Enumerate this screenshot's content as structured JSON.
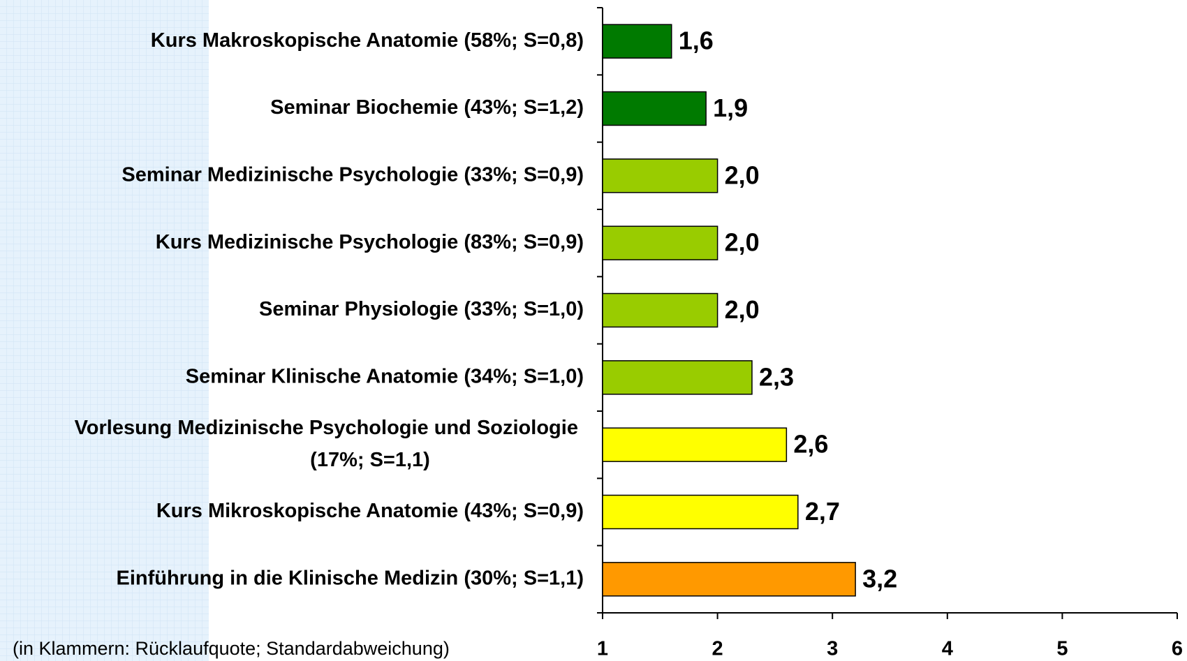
{
  "chart_data": {
    "type": "bar",
    "orientation": "horizontal",
    "categories": [
      "Kurs Makroskopische Anatomie (58%; S=0,8)",
      "Seminar Biochemie (43%; S=1,2)",
      "Seminar Medizinische Psychologie (33%; S=0,9)",
      "Kurs Medizinische Psychologie (83%; S=0,9)",
      "Seminar Physiologie (33%; S=1,0)",
      "Seminar Klinische Anatomie (34%; S=1,0)",
      "Vorlesung Medizinische Psychologie und Soziologie (17%; S=1,1)",
      "Kurs Mikroskopische Anatomie (43%; S=0,9)",
      "Einführung in die Klinische Medizin (30%; S=1,1)"
    ],
    "values": [
      1.6,
      1.9,
      2.0,
      2.0,
      2.0,
      2.3,
      2.6,
      2.7,
      3.2
    ],
    "value_labels": [
      "1,6",
      "1,9",
      "2,0",
      "2,0",
      "2,0",
      "2,3",
      "2,6",
      "2,7",
      "3,2"
    ],
    "colors": [
      "#007a00",
      "#007a00",
      "#99cc00",
      "#99cc00",
      "#99cc00",
      "#99cc00",
      "#ffff00",
      "#ffff00",
      "#ff9900"
    ],
    "xlim": [
      1,
      6
    ],
    "xticks": [
      1,
      2,
      3,
      4,
      5,
      6
    ],
    "footnote": "(in Klammern: Rücklaufquote; Standardabweichung)"
  }
}
